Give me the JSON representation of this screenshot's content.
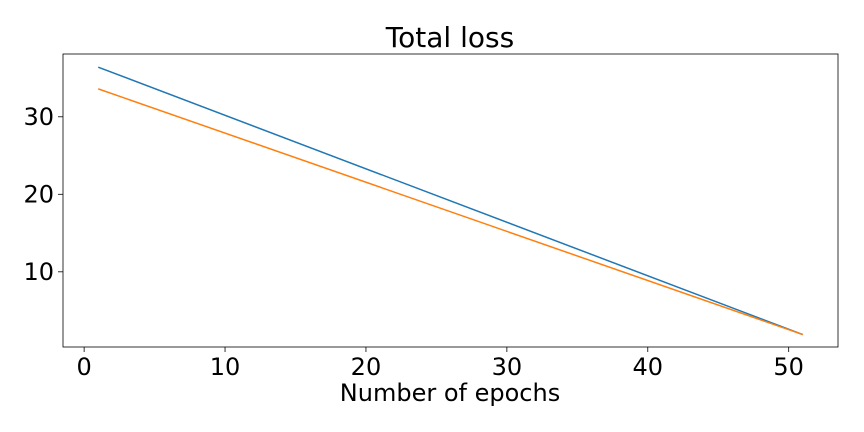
{
  "chart_data": {
    "type": "line",
    "title": "Total loss",
    "xlabel": "Number of epochs",
    "ylabel": "",
    "xlim": [
      -1.5,
      53.5
    ],
    "ylim": [
      0.3,
      38.1
    ],
    "xticks": [
      0,
      10,
      20,
      30,
      40,
      50
    ],
    "yticks": [
      10,
      20,
      30
    ],
    "grid": false,
    "series": [
      {
        "x": [
          1,
          51
        ],
        "y": [
          36.4,
          1.9
        ],
        "color": "#1f77b4"
      },
      {
        "x": [
          1,
          51
        ],
        "y": [
          33.6,
          1.9
        ],
        "color": "#ff7f0e"
      }
    ]
  }
}
